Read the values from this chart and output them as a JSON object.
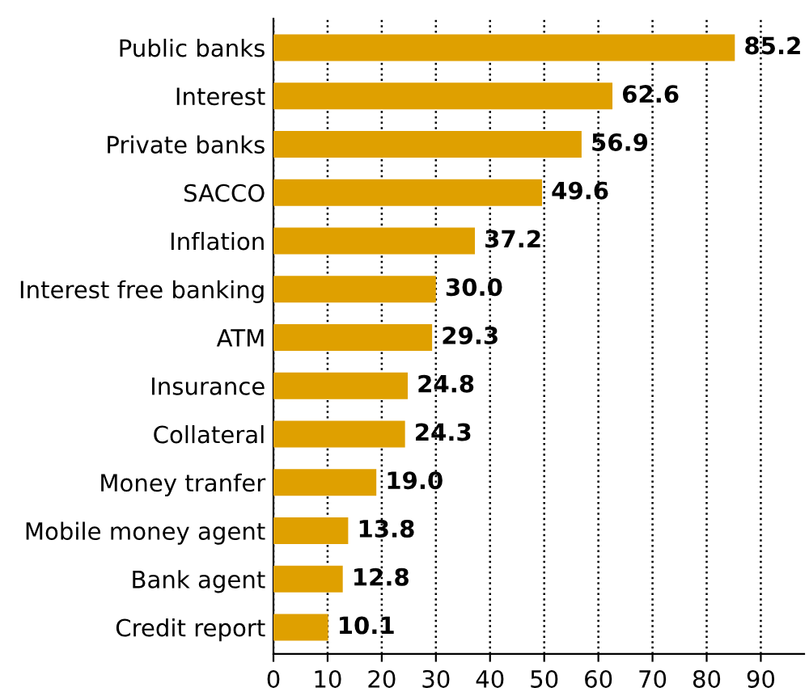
{
  "chart_data": {
    "type": "bar",
    "orientation": "horizontal",
    "categories": [
      "Public banks",
      "Interest",
      "Private banks",
      "SACCO",
      "Inflation",
      "Interest free banking",
      "ATM",
      "Insurance",
      "Collateral",
      "Money tranfer",
      "Mobile money agent",
      "Bank agent",
      "Credit report"
    ],
    "values": [
      85.2,
      62.6,
      56.9,
      49.6,
      37.2,
      30.0,
      29.3,
      24.8,
      24.3,
      19.0,
      13.8,
      12.8,
      10.1
    ],
    "value_labels": [
      "85.2",
      "62.6",
      "56.9",
      "49.6",
      "37.2",
      "30.0",
      "29.3",
      "24.8",
      "24.3",
      "19.0",
      "13.8",
      "12.8",
      "10.1"
    ],
    "color": "#dfa000",
    "xlim": [
      0,
      98
    ],
    "xticks": [
      0,
      10,
      20,
      30,
      40,
      50,
      60,
      70,
      80,
      90
    ],
    "grid": "x",
    "line_style": "dotted"
  }
}
